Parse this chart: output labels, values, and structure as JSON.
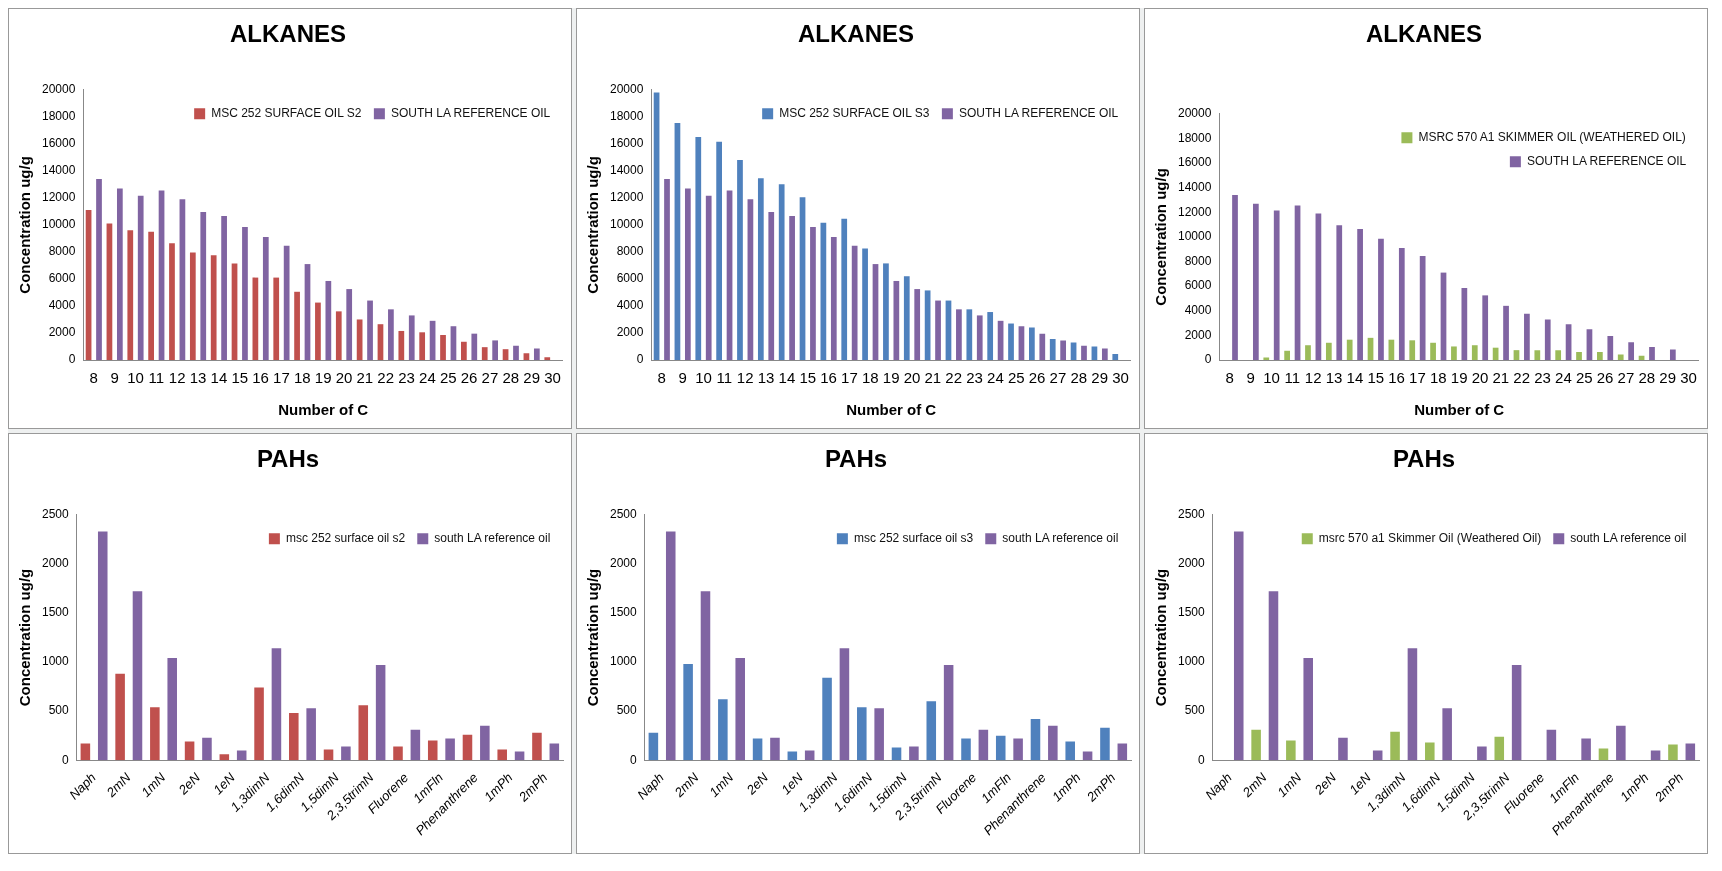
{
  "chart_data": [
    {
      "type": "bar",
      "title": "ALKANES",
      "xlabel": "Number of C",
      "ylabel": "Concentration ug/g",
      "categories": [
        "8",
        "9",
        "10",
        "11",
        "12",
        "13",
        "14",
        "15",
        "16",
        "17",
        "18",
        "19",
        "20",
        "21",
        "22",
        "23",
        "24",
        "25",
        "26",
        "27",
        "28",
        "29",
        "30"
      ],
      "ylim": [
        0,
        20000
      ],
      "yticks": [
        0,
        2000,
        4000,
        6000,
        8000,
        10000,
        12000,
        14000,
        16000,
        18000,
        20000
      ],
      "legend": "top right",
      "series": [
        {
          "name": "MSC 252 SURFACE OIL S2",
          "color": "#c0504d",
          "values": [
            11100,
            10100,
            9600,
            9500,
            8650,
            7950,
            7750,
            7150,
            6100,
            6100,
            5050,
            4250,
            3600,
            3000,
            2650,
            2150,
            2050,
            1850,
            1350,
            950,
            800,
            500,
            200
          ]
        },
        {
          "name": "SOUTH LA REFERENCE OIL",
          "color": "#8064a2",
          "values": [
            13400,
            12700,
            12150,
            12550,
            11900,
            10950,
            10650,
            9850,
            9100,
            8450,
            7100,
            5850,
            5250,
            4400,
            3750,
            3300,
            2900,
            2500,
            1950,
            1450,
            1050,
            850,
            null
          ]
        }
      ]
    },
    {
      "type": "bar",
      "title": "ALKANES",
      "xlabel": "Number of C",
      "ylabel": "Concentration ug/g",
      "categories": [
        "8",
        "9",
        "10",
        "11",
        "12",
        "13",
        "14",
        "15",
        "16",
        "17",
        "18",
        "19",
        "20",
        "21",
        "22",
        "23",
        "24",
        "25",
        "26",
        "27",
        "28",
        "29",
        "30"
      ],
      "ylim": [
        0,
        20000
      ],
      "yticks": [
        0,
        2000,
        4000,
        6000,
        8000,
        10000,
        12000,
        14000,
        16000,
        18000,
        20000
      ],
      "legend": "top right",
      "series": [
        {
          "name": "MSC 252 SURFACE OIL S3",
          "color": "#4f81bd",
          "values": [
            19800,
            17550,
            16500,
            16150,
            14800,
            13450,
            13000,
            12050,
            10150,
            10450,
            8250,
            7150,
            6200,
            5150,
            4400,
            3750,
            3550,
            2700,
            2400,
            1550,
            1300,
            1000,
            450
          ]
        },
        {
          "name": "SOUTH LA REFERENCE OIL",
          "color": "#8064a2",
          "values": [
            13400,
            12700,
            12150,
            12550,
            11900,
            10950,
            10650,
            9850,
            9100,
            8450,
            7100,
            5850,
            5250,
            4400,
            3750,
            3300,
            2900,
            2500,
            1950,
            1450,
            1050,
            850,
            null
          ]
        }
      ]
    },
    {
      "type": "bar",
      "title": "ALKANES",
      "xlabel": "Number of C",
      "ylabel": "Concentration ug/g",
      "categories": [
        "8",
        "9",
        "10",
        "11",
        "12",
        "13",
        "14",
        "15",
        "16",
        "17",
        "18",
        "19",
        "20",
        "21",
        "22",
        "23",
        "24",
        "25",
        "26",
        "27",
        "28",
        "29",
        "30"
      ],
      "ylim": [
        0,
        20000
      ],
      "yticks": [
        0,
        2000,
        4000,
        6000,
        8000,
        10000,
        12000,
        14000,
        16000,
        18000,
        20000
      ],
      "legend": "top right",
      "series": [
        {
          "name": "MSRC 570 A1 SKIMMER OIL (WEATHERED OIL)",
          "color": "#9bbb59",
          "values": [
            null,
            null,
            200,
            750,
            1200,
            1400,
            1650,
            1800,
            1650,
            1600,
            1400,
            1100,
            1200,
            1000,
            800,
            800,
            800,
            650,
            650,
            450,
            350,
            null,
            null
          ]
        },
        {
          "name": "SOUTH LA REFERENCE OIL",
          "color": "#8064a2",
          "values": [
            13400,
            12700,
            12150,
            12550,
            11900,
            10950,
            10650,
            9850,
            9100,
            8450,
            7100,
            5850,
            5250,
            4400,
            3750,
            3300,
            2900,
            2500,
            1950,
            1450,
            1050,
            850,
            null
          ]
        }
      ]
    },
    {
      "type": "bar",
      "title": "PAHs",
      "ylabel": "Concentration ug/g",
      "categories": [
        "Naph",
        "2mN",
        "1mN",
        "2eN",
        "1eN",
        "1,3dimN",
        "1,6dimN",
        "1,5dimN",
        "2,3,5trimN",
        "Fluorene",
        "1mFln",
        "Phenanthrene",
        "1mPh",
        "2mPh"
      ],
      "ylim": [
        0,
        2500
      ],
      "yticks": [
        0,
        500,
        1000,
        1500,
        2000,
        2500
      ],
      "legend": "top right",
      "series": [
        {
          "name": "msc 252 surface oil s2",
          "color": "#c0504d",
          "values": [
            170,
            880,
            540,
            190,
            60,
            740,
            480,
            110,
            560,
            140,
            200,
            260,
            110,
            280
          ]
        },
        {
          "name": "south LA reference oil",
          "color": "#8064a2",
          "values": [
            2330,
            1720,
            1040,
            230,
            100,
            1140,
            530,
            140,
            970,
            310,
            220,
            350,
            90,
            170
          ]
        }
      ]
    },
    {
      "type": "bar",
      "title": "PAHs",
      "ylabel": "Concentration ug/g",
      "categories": [
        "Naph",
        "2mN",
        "1mN",
        "2eN",
        "1eN",
        "1,3dimN",
        "1,6dimN",
        "1,5dimN",
        "2,3,5trimN",
        "Fluorene",
        "1mFln",
        "Phenanthrene",
        "1mPh",
        "2mPh"
      ],
      "ylim": [
        0,
        2500
      ],
      "yticks": [
        0,
        500,
        1000,
        1500,
        2000,
        2500
      ],
      "legend": "top right",
      "series": [
        {
          "name": "msc 252 surface oil s3",
          "color": "#4f81bd",
          "values": [
            280,
            980,
            620,
            220,
            90,
            840,
            540,
            130,
            600,
            220,
            250,
            420,
            190,
            330
          ]
        },
        {
          "name": "south LA reference oil",
          "color": "#8064a2",
          "values": [
            2330,
            1720,
            1040,
            230,
            100,
            1140,
            530,
            140,
            970,
            310,
            220,
            350,
            90,
            170
          ]
        }
      ]
    },
    {
      "type": "bar",
      "title": "PAHs",
      "ylabel": "Concentration ug/g",
      "categories": [
        "Naph",
        "2mN",
        "1mN",
        "2eN",
        "1eN",
        "1,3dimN",
        "1,6dimN",
        "1,5dimN",
        "2,3,5trimN",
        "Fluorene",
        "1mFln",
        "Phenanthrene",
        "1mPh",
        "2mPh"
      ],
      "ylim": [
        0,
        2500
      ],
      "yticks": [
        0,
        500,
        1000,
        1500,
        2000,
        2500
      ],
      "legend": "top right",
      "series": [
        {
          "name": "msrc 570 a1 Skimmer Oil (Weathered Oil)",
          "color": "#9bbb59",
          "values": [
            null,
            310,
            200,
            null,
            null,
            290,
            180,
            null,
            240,
            null,
            null,
            120,
            null,
            160
          ]
        },
        {
          "name": "south LA reference oil",
          "color": "#8064a2",
          "values": [
            2330,
            1720,
            1040,
            230,
            100,
            1140,
            530,
            140,
            970,
            310,
            220,
            350,
            100,
            170
          ]
        }
      ]
    }
  ]
}
